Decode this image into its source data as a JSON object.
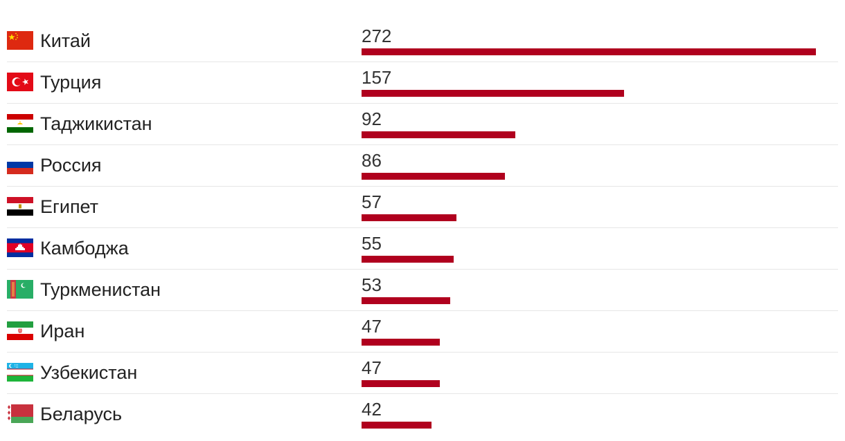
{
  "chart_data": {
    "type": "bar",
    "orientation": "horizontal",
    "title": "",
    "xlabel": "",
    "ylabel": "",
    "xlim": [
      0,
      272
    ],
    "grid": false,
    "legend": "none",
    "bar_color": "#b0001e",
    "categories": [
      "Китай",
      "Турция",
      "Таджикистан",
      "Россия",
      "Египет",
      "Камбоджа",
      "Туркменистан",
      "Иран",
      "Узбекистан",
      "Беларусь"
    ],
    "flag_icons": [
      "china-flag-icon",
      "turkey-flag-icon",
      "tajikistan-flag-icon",
      "russia-flag-icon",
      "egypt-flag-icon",
      "cambodia-flag-icon",
      "turkmenistan-flag-icon",
      "iran-flag-icon",
      "uzbekistan-flag-icon",
      "belarus-flag-icon"
    ],
    "series": [
      {
        "values": [
          272,
          157,
          92,
          86,
          57,
          55,
          53,
          47,
          47,
          42
        ]
      }
    ]
  }
}
